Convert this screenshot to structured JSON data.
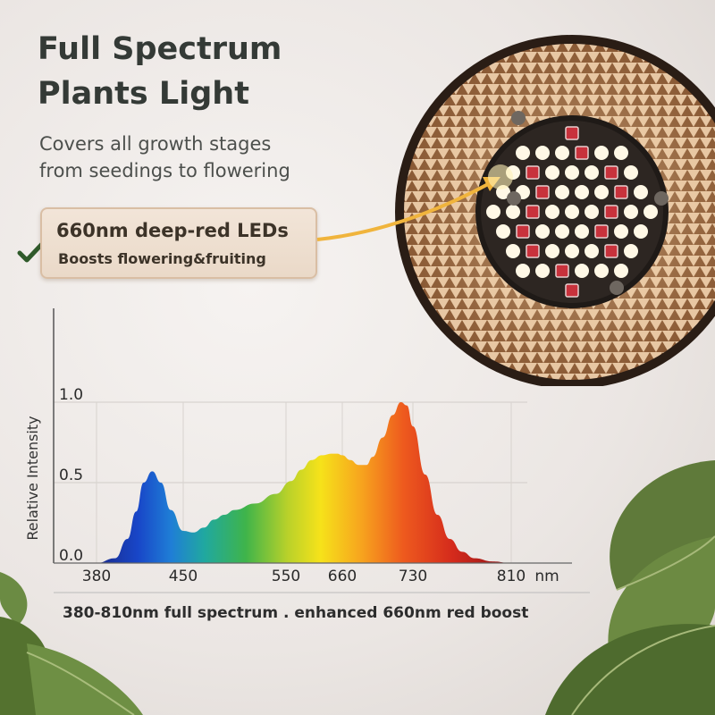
{
  "title": {
    "line1": "Full Spectrum",
    "line2": "Plants Light"
  },
  "subtitle": {
    "line1": "Covers all growth stages",
    "line2": "from seedings to flowering"
  },
  "callout": {
    "line1": "660nm deep-red LEDs",
    "line2": "Boosts flowering&fruiting",
    "check_icon": "check-icon"
  },
  "caption": "380-810nm full spectrum . enhanced 660nm red boost",
  "colors": {
    "title": "#343a36",
    "callout_bg": "#f0e2d4",
    "accent_arrow": "#f0b43c"
  },
  "chart_data": {
    "type": "area",
    "ylabel": "Relative Intensity",
    "x_ticks": [
      "380",
      "450",
      "550",
      "660",
      "730",
      "810"
    ],
    "x_unit": "nm",
    "y_ticks": [
      "0.0",
      "0.5",
      "1.0"
    ],
    "ylim": [
      0,
      1
    ],
    "grid": true,
    "series": [
      {
        "x": [
          380,
          395,
          405,
          412,
          418,
          425,
          432,
          440,
          450,
          460,
          470,
          480,
          490,
          500,
          520,
          540,
          560,
          580,
          600,
          620,
          640,
          650,
          660,
          668,
          676,
          684,
          690,
          700,
          710,
          718,
          724,
          730,
          740,
          750,
          760,
          770,
          780,
          795,
          810
        ],
        "y": [
          0.0,
          0.03,
          0.15,
          0.32,
          0.5,
          0.57,
          0.5,
          0.33,
          0.2,
          0.19,
          0.22,
          0.27,
          0.3,
          0.33,
          0.37,
          0.43,
          0.51,
          0.58,
          0.64,
          0.67,
          0.68,
          0.68,
          0.67,
          0.64,
          0.61,
          0.61,
          0.66,
          0.78,
          0.92,
          1.0,
          0.98,
          0.85,
          0.55,
          0.3,
          0.15,
          0.07,
          0.03,
          0.01,
          0.0
        ]
      }
    ]
  }
}
